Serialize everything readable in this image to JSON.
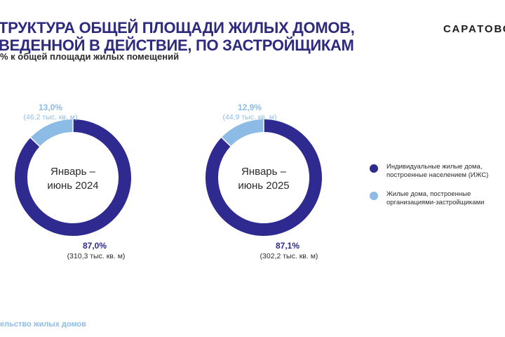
{
  "header": {
    "title_line1": "ТРУКТУРА ОБЩЕЙ ПЛОЩАДИ ЖИЛЫХ ДОМОВ,",
    "title_line2": "ВЕДЕННОЙ В ДЕЙСТВИЕ, ПО ЗАСТРОЙЩИКАМ",
    "subtitle": "% к общей площади жилых помещений",
    "brand": "САРАТОВС"
  },
  "footer": {
    "text": "ельство жилых домов"
  },
  "colors": {
    "dark": "#2e2a8f",
    "light": "#8cbbe6",
    "title": "#2e2a7e"
  },
  "chart_data": [
    {
      "type": "pie",
      "center_label": [
        "Январь –",
        "июнь 2024"
      ],
      "slices": [
        {
          "label": "Индивидуальные жилые дома, построенные населением (ИЖС)",
          "value": 87.0,
          "value_text": "87,0%",
          "area_text": "(310,3 тыс. кв. м)"
        },
        {
          "label": "Жилые дома, построенные организациями-застройщиками",
          "value": 13.0,
          "value_text": "13,0%",
          "area_text": "(46,2 тыс. кв. м)"
        }
      ]
    },
    {
      "type": "pie",
      "center_label": [
        "Январь –",
        "июнь 2025"
      ],
      "slices": [
        {
          "label": "Индивидуальные жилые дома, построенные населением (ИЖС)",
          "value": 87.1,
          "value_text": "87,1%",
          "area_text": "(302,2 тыс. кв. м)"
        },
        {
          "label": "Жилые дома, построенные организациями-застройщиками",
          "value": 12.9,
          "value_text": "12,9%",
          "area_text": "(44,9 тыс. кв. м)"
        }
      ]
    }
  ],
  "legend": [
    {
      "text": "Индивидуальные жилые дома,\nпостроенные населением (ИЖС)",
      "color": "#2e2a8f"
    },
    {
      "text": "Жилые дома,  построенные\nорганизациями-застройщиками",
      "color": "#8cbbe6"
    }
  ]
}
